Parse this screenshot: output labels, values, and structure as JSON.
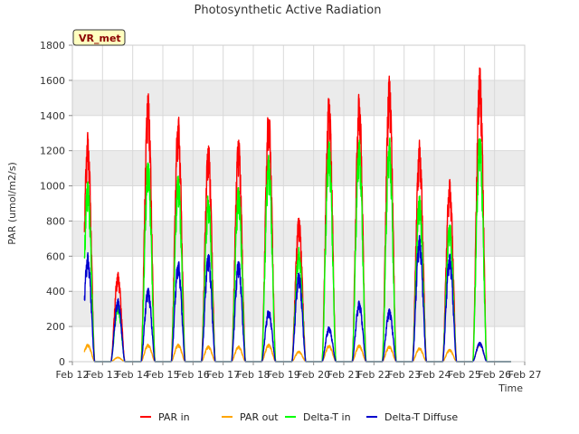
{
  "chart_data": {
    "type": "line",
    "title": "Photosynthetic Active Radiation",
    "xlabel": "Time",
    "ylabel": "PAR (umol/m2/s)",
    "ylim": [
      0,
      1800
    ],
    "yticks": [
      0,
      200,
      400,
      600,
      800,
      1000,
      1200,
      1400,
      1600,
      1800
    ],
    "xlim": [
      12,
      27
    ],
    "xticks": [
      {
        "value": 12,
        "label": "Feb 12"
      },
      {
        "value": 13,
        "label": "Feb 13"
      },
      {
        "value": 14,
        "label": "Feb 14"
      },
      {
        "value": 15,
        "label": "Feb 15"
      },
      {
        "value": 16,
        "label": "Feb 16"
      },
      {
        "value": 17,
        "label": "Feb 17"
      },
      {
        "value": 18,
        "label": "Feb 18"
      },
      {
        "value": 19,
        "label": "Feb 19"
      },
      {
        "value": 20,
        "label": "Feb 20"
      },
      {
        "value": 21,
        "label": "Feb 21"
      },
      {
        "value": 22,
        "label": "Feb 22"
      },
      {
        "value": 23,
        "label": "Feb 23"
      },
      {
        "value": 24,
        "label": "Feb 24"
      },
      {
        "value": 25,
        "label": "Feb 25"
      },
      {
        "value": 26,
        "label": "Feb 26"
      },
      {
        "value": 27,
        "label": "Feb 27"
      }
    ],
    "grid": true,
    "legend_position": "bottom",
    "badge": "VR_met",
    "day_dates": [
      "Feb 12",
      "Feb 13",
      "Feb 14",
      "Feb 15",
      "Feb 16",
      "Feb 17",
      "Feb 18",
      "Feb 19",
      "Feb 20",
      "Feb 21",
      "Feb 22",
      "Feb 23",
      "Feb 24",
      "Feb 25",
      "Feb 26"
    ],
    "series": [
      {
        "name": "PAR in",
        "color": "#ff0000",
        "daily_peak": [
          1310,
          510,
          1530,
          1410,
          1250,
          1280,
          1450,
          830,
          1520,
          1540,
          1630,
          1260,
          1050,
          1680,
          0
        ]
      },
      {
        "name": "PAR out",
        "color": "#ffa500",
        "daily_peak": [
          100,
          25,
          100,
          100,
          90,
          90,
          100,
          60,
          95,
          95,
          90,
          80,
          70,
          110,
          0
        ]
      },
      {
        "name": "Delta-T in",
        "color": "#00ff00",
        "daily_peak": [
          1030,
          330,
          1160,
          1070,
          960,
          1000,
          1180,
          650,
          1260,
          1270,
          1290,
          950,
          800,
          1320,
          0
        ]
      },
      {
        "name": "Delta-T Diffuse",
        "color": "#0000cd",
        "daily_peak": [
          620,
          360,
          420,
          580,
          620,
          580,
          300,
          510,
          200,
          350,
          300,
          720,
          620,
          110,
          0
        ]
      }
    ]
  }
}
